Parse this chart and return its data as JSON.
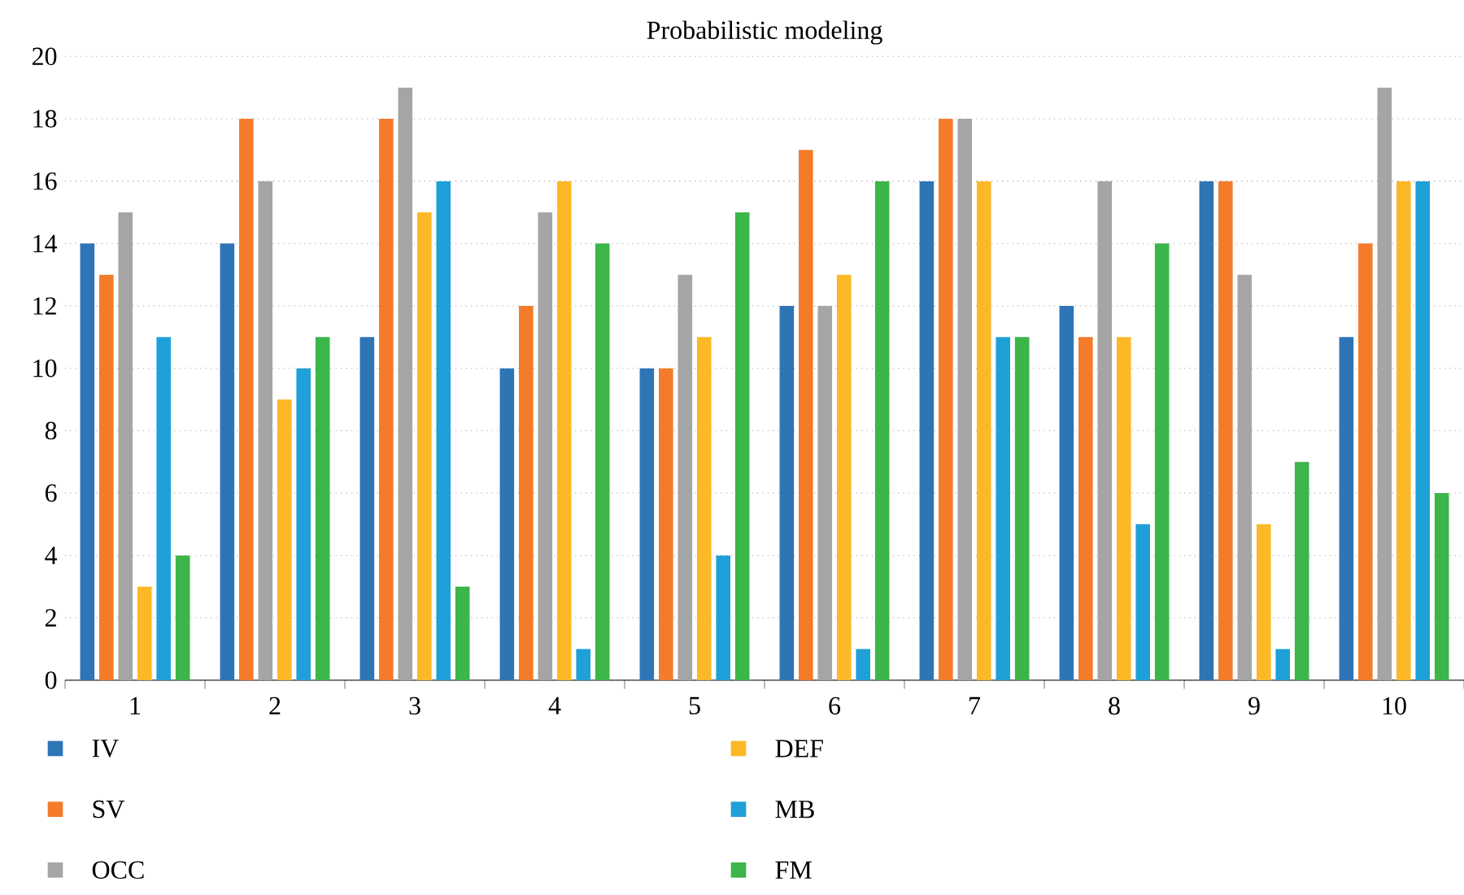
{
  "chart_data": {
    "type": "bar",
    "title": "Probabilistic modeling",
    "categories": [
      "1",
      "2",
      "3",
      "4",
      "5",
      "6",
      "7",
      "8",
      "9",
      "10"
    ],
    "series": [
      {
        "name": "IV",
        "color": "#2e75b6",
        "values": [
          14,
          14,
          11,
          10,
          10,
          12,
          16,
          12,
          16,
          11
        ]
      },
      {
        "name": "SV",
        "color": "#f47b2a",
        "values": [
          13,
          18,
          18,
          12,
          10,
          17,
          18,
          11,
          16,
          14
        ]
      },
      {
        "name": "OCC",
        "color": "#a5a5a5",
        "values": [
          15,
          16,
          19,
          15,
          13,
          12,
          18,
          16,
          13,
          19
        ]
      },
      {
        "name": "DEF",
        "color": "#fdb827",
        "values": [
          3,
          9,
          15,
          16,
          11,
          13,
          16,
          11,
          5,
          16
        ]
      },
      {
        "name": "MB",
        "color": "#1fa0d8",
        "values": [
          11,
          10,
          16,
          1,
          4,
          1,
          11,
          5,
          1,
          16
        ]
      },
      {
        "name": "FM",
        "color": "#3cb54a",
        "values": [
          4,
          11,
          3,
          14,
          15,
          16,
          11,
          14,
          7,
          6
        ]
      }
    ],
    "ylim": [
      0,
      20
    ],
    "yticks": [
      0,
      2,
      4,
      6,
      8,
      10,
      12,
      14,
      16,
      18,
      20
    ],
    "grid": "y",
    "legend": "bottom"
  }
}
